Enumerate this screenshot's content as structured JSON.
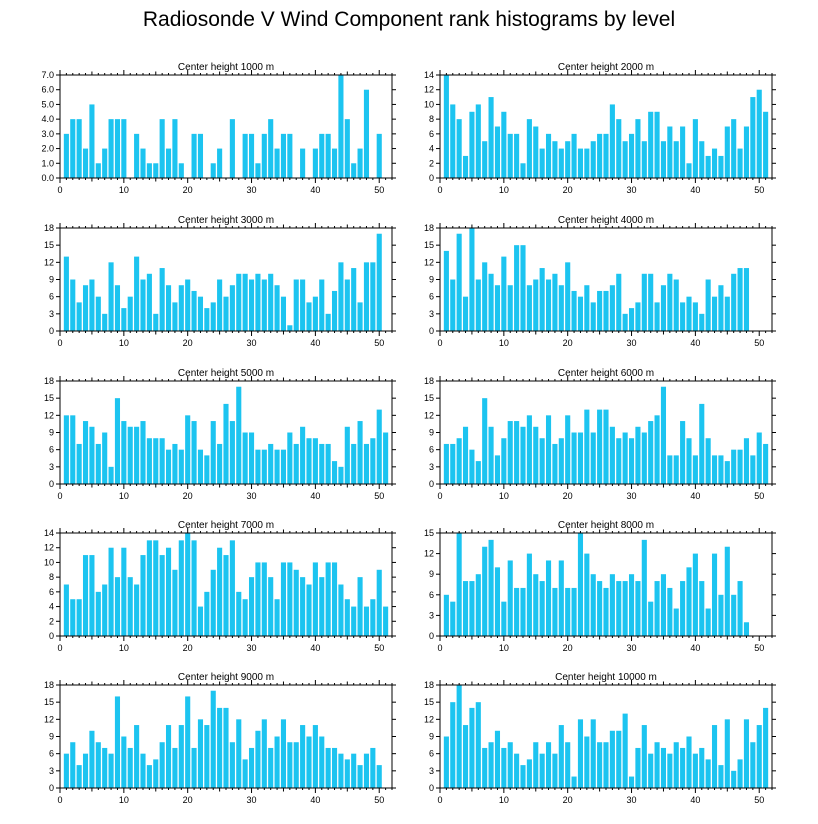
{
  "figure_title": "Radiosonde V Wind Component rank histograms by level",
  "bar_color": "#1cc4f0",
  "chart_data": [
    {
      "type": "bar",
      "title": "Center height 1000 m",
      "x": [
        0,
        1,
        2,
        3,
        4,
        5,
        6,
        7,
        8,
        9,
        10,
        11,
        12,
        13,
        14,
        15,
        16,
        17,
        18,
        19,
        20,
        21,
        22,
        23,
        24,
        25,
        26,
        27,
        28,
        29,
        30,
        31,
        32,
        33,
        34,
        35,
        36,
        37,
        38,
        39,
        40,
        41,
        42,
        43,
        44,
        45,
        46,
        47,
        48,
        49,
        50,
        51
      ],
      "values": [
        0,
        3,
        4,
        4,
        2,
        5,
        1,
        2,
        4,
        4,
        4,
        0,
        3,
        2,
        1,
        1,
        4,
        2,
        4,
        1,
        0,
        3,
        3,
        0,
        1,
        2,
        0,
        4,
        0,
        3,
        3,
        1,
        3,
        4,
        2,
        3,
        3,
        0,
        2,
        0,
        2,
        3,
        3,
        2,
        7,
        4,
        1,
        2,
        6,
        0,
        3,
        0
      ],
      "xlim": [
        0,
        52
      ],
      "ylim": [
        0,
        7
      ],
      "yticks": [
        0.0,
        1.0,
        2.0,
        3.0,
        4.0,
        5.0,
        6.0,
        7.0
      ],
      "ytick_labels": [
        "0.0",
        "1.0",
        "2.0",
        "3.0",
        "4.0",
        "5.0",
        "6.0",
        "7.0"
      ],
      "xticks": [
        0,
        10,
        20,
        30,
        40,
        50
      ],
      "xtick_labels": [
        "0",
        "10",
        "20",
        "30",
        "40",
        "50"
      ]
    },
    {
      "type": "bar",
      "title": "Center height 2000 m",
      "x": [
        0,
        1,
        2,
        3,
        4,
        5,
        6,
        7,
        8,
        9,
        10,
        11,
        12,
        13,
        14,
        15,
        16,
        17,
        18,
        19,
        20,
        21,
        22,
        23,
        24,
        25,
        26,
        27,
        28,
        29,
        30,
        31,
        32,
        33,
        34,
        35,
        36,
        37,
        38,
        39,
        40,
        41,
        42,
        43,
        44,
        45,
        46,
        47,
        48,
        49,
        50,
        51
      ],
      "values": [
        0,
        14,
        10,
        8,
        3,
        9,
        10,
        5,
        11,
        7,
        9,
        6,
        6,
        2,
        8,
        7,
        4,
        6,
        5,
        4,
        5,
        6,
        4,
        4,
        5,
        6,
        6,
        10,
        8,
        5,
        6,
        8,
        5,
        9,
        9,
        5,
        7,
        5,
        7,
        2,
        8,
        5,
        3,
        4,
        3,
        7,
        8,
        4,
        7,
        11,
        12,
        9
      ],
      "xlim": [
        0,
        52
      ],
      "ylim": [
        0,
        14
      ],
      "yticks": [
        0,
        2,
        4,
        6,
        8,
        10,
        12,
        14
      ],
      "ytick_labels": [
        "0",
        "2",
        "4",
        "6",
        "8",
        "10",
        "12",
        "14"
      ],
      "xticks": [
        0,
        10,
        20,
        30,
        40,
        50
      ],
      "xtick_labels": [
        "0",
        "10",
        "20",
        "30",
        "40",
        "50"
      ]
    },
    {
      "type": "bar",
      "title": "Center height 3000 m",
      "x": [
        0,
        1,
        2,
        3,
        4,
        5,
        6,
        7,
        8,
        9,
        10,
        11,
        12,
        13,
        14,
        15,
        16,
        17,
        18,
        19,
        20,
        21,
        22,
        23,
        24,
        25,
        26,
        27,
        28,
        29,
        30,
        31,
        32,
        33,
        34,
        35,
        36,
        37,
        38,
        39,
        40,
        41,
        42,
        43,
        44,
        45,
        46,
        47,
        48,
        49,
        50,
        51
      ],
      "values": [
        0,
        13,
        9,
        5,
        8,
        9,
        6,
        3,
        12,
        8,
        4,
        6,
        13,
        9,
        10,
        3,
        11,
        8,
        5,
        8,
        9,
        7,
        6,
        4,
        5,
        9,
        6,
        8,
        10,
        10,
        9,
        10,
        9,
        10,
        8,
        6,
        1,
        9,
        9,
        5,
        6,
        9,
        3,
        7,
        12,
        9,
        11,
        5,
        12,
        12,
        17,
        0
      ],
      "xlim": [
        0,
        52
      ],
      "ylim": [
        0,
        18
      ],
      "yticks": [
        0,
        3,
        6,
        9,
        12,
        15,
        18
      ],
      "ytick_labels": [
        "0",
        "3",
        "6",
        "9",
        "12",
        "15",
        "18"
      ],
      "xticks": [
        0,
        10,
        20,
        30,
        40,
        50
      ],
      "xtick_labels": [
        "0",
        "10",
        "20",
        "30",
        "40",
        "50"
      ]
    },
    {
      "type": "bar",
      "title": "Center height 4000 m",
      "x": [
        0,
        1,
        2,
        3,
        4,
        5,
        6,
        7,
        8,
        9,
        10,
        11,
        12,
        13,
        14,
        15,
        16,
        17,
        18,
        19,
        20,
        21,
        22,
        23,
        24,
        25,
        26,
        27,
        28,
        29,
        30,
        31,
        32,
        33,
        34,
        35,
        36,
        37,
        38,
        39,
        40,
        41,
        42,
        43,
        44,
        45,
        46,
        47,
        48,
        49,
        50,
        51
      ],
      "values": [
        0,
        14,
        9,
        17,
        6,
        18,
        9,
        12,
        10,
        8,
        13,
        8,
        15,
        15,
        8,
        9,
        11,
        9,
        10,
        8,
        12,
        7,
        6,
        8,
        5,
        7,
        7,
        8,
        10,
        3,
        4,
        5,
        10,
        10,
        5,
        8,
        10,
        9,
        5,
        6,
        5,
        3,
        9,
        6,
        8,
        6,
        10,
        11,
        11,
        0,
        0,
        0
      ],
      "xlim": [
        0,
        52
      ],
      "ylim": [
        0,
        18
      ],
      "yticks": [
        0,
        3,
        6,
        9,
        12,
        15,
        18
      ],
      "ytick_labels": [
        "0",
        "3",
        "6",
        "9",
        "12",
        "15",
        "18"
      ],
      "xticks": [
        0,
        10,
        20,
        30,
        40,
        50
      ],
      "xtick_labels": [
        "0",
        "10",
        "20",
        "30",
        "40",
        "50"
      ]
    },
    {
      "type": "bar",
      "title": "Center height 5000 m",
      "x": [
        0,
        1,
        2,
        3,
        4,
        5,
        6,
        7,
        8,
        9,
        10,
        11,
        12,
        13,
        14,
        15,
        16,
        17,
        18,
        19,
        20,
        21,
        22,
        23,
        24,
        25,
        26,
        27,
        28,
        29,
        30,
        31,
        32,
        33,
        34,
        35,
        36,
        37,
        38,
        39,
        40,
        41,
        42,
        43,
        44,
        45,
        46,
        47,
        48,
        49,
        50,
        51
      ],
      "values": [
        0,
        12,
        12,
        7,
        11,
        10,
        7,
        9,
        3,
        15,
        11,
        10,
        10,
        11,
        8,
        8,
        8,
        6,
        7,
        6,
        12,
        11,
        6,
        5,
        11,
        7,
        14,
        11,
        17,
        9,
        9,
        6,
        6,
        7,
        6,
        6,
        9,
        7,
        10,
        8,
        8,
        7,
        7,
        4,
        3,
        10,
        7,
        11,
        7,
        8,
        13,
        9
      ],
      "xlim": [
        0,
        52
      ],
      "ylim": [
        0,
        18
      ],
      "yticks": [
        0,
        3,
        6,
        9,
        12,
        15,
        18
      ],
      "ytick_labels": [
        "0",
        "3",
        "6",
        "9",
        "12",
        "15",
        "18"
      ],
      "xticks": [
        0,
        10,
        20,
        30,
        40,
        50
      ],
      "xtick_labels": [
        "0",
        "10",
        "20",
        "30",
        "40",
        "50"
      ]
    },
    {
      "type": "bar",
      "title": "Center height 6000 m",
      "x": [
        0,
        1,
        2,
        3,
        4,
        5,
        6,
        7,
        8,
        9,
        10,
        11,
        12,
        13,
        14,
        15,
        16,
        17,
        18,
        19,
        20,
        21,
        22,
        23,
        24,
        25,
        26,
        27,
        28,
        29,
        30,
        31,
        32,
        33,
        34,
        35,
        36,
        37,
        38,
        39,
        40,
        41,
        42,
        43,
        44,
        45,
        46,
        47,
        48,
        49,
        50,
        51
      ],
      "values": [
        0,
        7,
        7,
        8,
        10,
        6,
        4,
        15,
        10,
        5,
        8,
        11,
        11,
        10,
        12,
        10,
        8,
        12,
        7,
        8,
        12,
        9,
        9,
        13,
        9,
        13,
        13,
        10,
        8,
        9,
        8,
        10,
        9,
        11,
        12,
        17,
        5,
        5,
        11,
        8,
        5,
        14,
        8,
        5,
        5,
        4,
        6,
        6,
        8,
        5,
        9,
        7
      ],
      "xlim": [
        0,
        52
      ],
      "ylim": [
        0,
        18
      ],
      "yticks": [
        0,
        3,
        6,
        9,
        12,
        15,
        18
      ],
      "ytick_labels": [
        "0",
        "3",
        "6",
        "9",
        "12",
        "15",
        "18"
      ],
      "xticks": [
        0,
        10,
        20,
        30,
        40,
        50
      ],
      "xtick_labels": [
        "0",
        "10",
        "20",
        "30",
        "40",
        "50"
      ]
    },
    {
      "type": "bar",
      "title": "Center height 7000 m",
      "x": [
        0,
        1,
        2,
        3,
        4,
        5,
        6,
        7,
        8,
        9,
        10,
        11,
        12,
        13,
        14,
        15,
        16,
        17,
        18,
        19,
        20,
        21,
        22,
        23,
        24,
        25,
        26,
        27,
        28,
        29,
        30,
        31,
        32,
        33,
        34,
        35,
        36,
        37,
        38,
        39,
        40,
        41,
        42,
        43,
        44,
        45,
        46,
        47,
        48,
        49,
        50,
        51
      ],
      "values": [
        0,
        7,
        5,
        5,
        11,
        11,
        6,
        7,
        12,
        8,
        12,
        8,
        7,
        11,
        13,
        13,
        11,
        12,
        9,
        13,
        14,
        13,
        4,
        6,
        9,
        12,
        11,
        13,
        6,
        5,
        8,
        10,
        10,
        8,
        5,
        10,
        10,
        9,
        8,
        7,
        10,
        8,
        10,
        10,
        7,
        5,
        4,
        8,
        4,
        5,
        9,
        4
      ],
      "xlim": [
        0,
        52
      ],
      "ylim": [
        0,
        14
      ],
      "yticks": [
        0,
        2,
        4,
        6,
        8,
        10,
        12,
        14
      ],
      "ytick_labels": [
        "0",
        "2",
        "4",
        "6",
        "8",
        "10",
        "12",
        "14"
      ],
      "xticks": [
        0,
        10,
        20,
        30,
        40,
        50
      ],
      "xtick_labels": [
        "0",
        "10",
        "20",
        "30",
        "40",
        "50"
      ]
    },
    {
      "type": "bar",
      "title": "Center height 8000 m",
      "x": [
        0,
        1,
        2,
        3,
        4,
        5,
        6,
        7,
        8,
        9,
        10,
        11,
        12,
        13,
        14,
        15,
        16,
        17,
        18,
        19,
        20,
        21,
        22,
        23,
        24,
        25,
        26,
        27,
        28,
        29,
        30,
        31,
        32,
        33,
        34,
        35,
        36,
        37,
        38,
        39,
        40,
        41,
        42,
        43,
        44,
        45,
        46,
        47,
        48,
        49,
        50,
        51
      ],
      "values": [
        0,
        6,
        5,
        15,
        8,
        8,
        9,
        13,
        14,
        10,
        5,
        11,
        7,
        7,
        12,
        9,
        8,
        11,
        7,
        11,
        7,
        7,
        15,
        12,
        9,
        8,
        7,
        9,
        8,
        8,
        9,
        8,
        14,
        5,
        8,
        9,
        7,
        4,
        8,
        10,
        12,
        8,
        4,
        12,
        6,
        13,
        6,
        8,
        2,
        0,
        0,
        0
      ],
      "xlim": [
        0,
        52
      ],
      "ylim": [
        0,
        15
      ],
      "yticks": [
        0,
        3,
        6,
        9,
        12,
        15
      ],
      "ytick_labels": [
        "0",
        "3",
        "6",
        "9",
        "12",
        "15"
      ],
      "xticks": [
        0,
        10,
        20,
        30,
        40,
        50
      ],
      "xtick_labels": [
        "0",
        "10",
        "20",
        "30",
        "40",
        "50"
      ]
    },
    {
      "type": "bar",
      "title": "Center height 9000 m",
      "x": [
        0,
        1,
        2,
        3,
        4,
        5,
        6,
        7,
        8,
        9,
        10,
        11,
        12,
        13,
        14,
        15,
        16,
        17,
        18,
        19,
        20,
        21,
        22,
        23,
        24,
        25,
        26,
        27,
        28,
        29,
        30,
        31,
        32,
        33,
        34,
        35,
        36,
        37,
        38,
        39,
        40,
        41,
        42,
        43,
        44,
        45,
        46,
        47,
        48,
        49,
        50,
        51
      ],
      "values": [
        0,
        6,
        8,
        4,
        6,
        10,
        8,
        7,
        6,
        16,
        9,
        7,
        11,
        6,
        4,
        5,
        8,
        11,
        7,
        11,
        16,
        7,
        12,
        11,
        17,
        14,
        14,
        8,
        12,
        5,
        7,
        10,
        12,
        7,
        9,
        12,
        8,
        8,
        11,
        9,
        11,
        9,
        7,
        7,
        6,
        5,
        6,
        4,
        6,
        7,
        4,
        0
      ],
      "xlim": [
        0,
        52
      ],
      "ylim": [
        0,
        18
      ],
      "yticks": [
        0,
        3,
        6,
        9,
        12,
        15,
        18
      ],
      "ytick_labels": [
        "0",
        "3",
        "6",
        "9",
        "12",
        "15",
        "18"
      ],
      "xticks": [
        0,
        10,
        20,
        30,
        40,
        50
      ],
      "xtick_labels": [
        "0",
        "10",
        "20",
        "30",
        "40",
        "50"
      ]
    },
    {
      "type": "bar",
      "title": "Center height 10000 m",
      "x": [
        0,
        1,
        2,
        3,
        4,
        5,
        6,
        7,
        8,
        9,
        10,
        11,
        12,
        13,
        14,
        15,
        16,
        17,
        18,
        19,
        20,
        21,
        22,
        23,
        24,
        25,
        26,
        27,
        28,
        29,
        30,
        31,
        32,
        33,
        34,
        35,
        36,
        37,
        38,
        39,
        40,
        41,
        42,
        43,
        44,
        45,
        46,
        47,
        48,
        49,
        50,
        51
      ],
      "values": [
        0,
        9,
        15,
        18,
        11,
        14,
        15,
        7,
        8,
        10,
        7,
        8,
        6,
        4,
        5,
        8,
        6,
        8,
        6,
        11,
        8,
        2,
        12,
        9,
        12,
        8,
        8,
        10,
        10,
        13,
        2,
        7,
        11,
        6,
        8,
        7,
        6,
        8,
        7,
        9,
        6,
        7,
        5,
        11,
        4,
        12,
        3,
        5,
        12,
        8,
        11,
        14
      ],
      "xlim": [
        0,
        52
      ],
      "ylim": [
        0,
        18
      ],
      "yticks": [
        0,
        3,
        6,
        9,
        12,
        15,
        18
      ],
      "ytick_labels": [
        "0",
        "3",
        "6",
        "9",
        "12",
        "15",
        "18"
      ],
      "xticks": [
        0,
        10,
        20,
        30,
        40,
        50
      ],
      "xtick_labels": [
        "0",
        "10",
        "20",
        "30",
        "40",
        "50"
      ]
    }
  ]
}
